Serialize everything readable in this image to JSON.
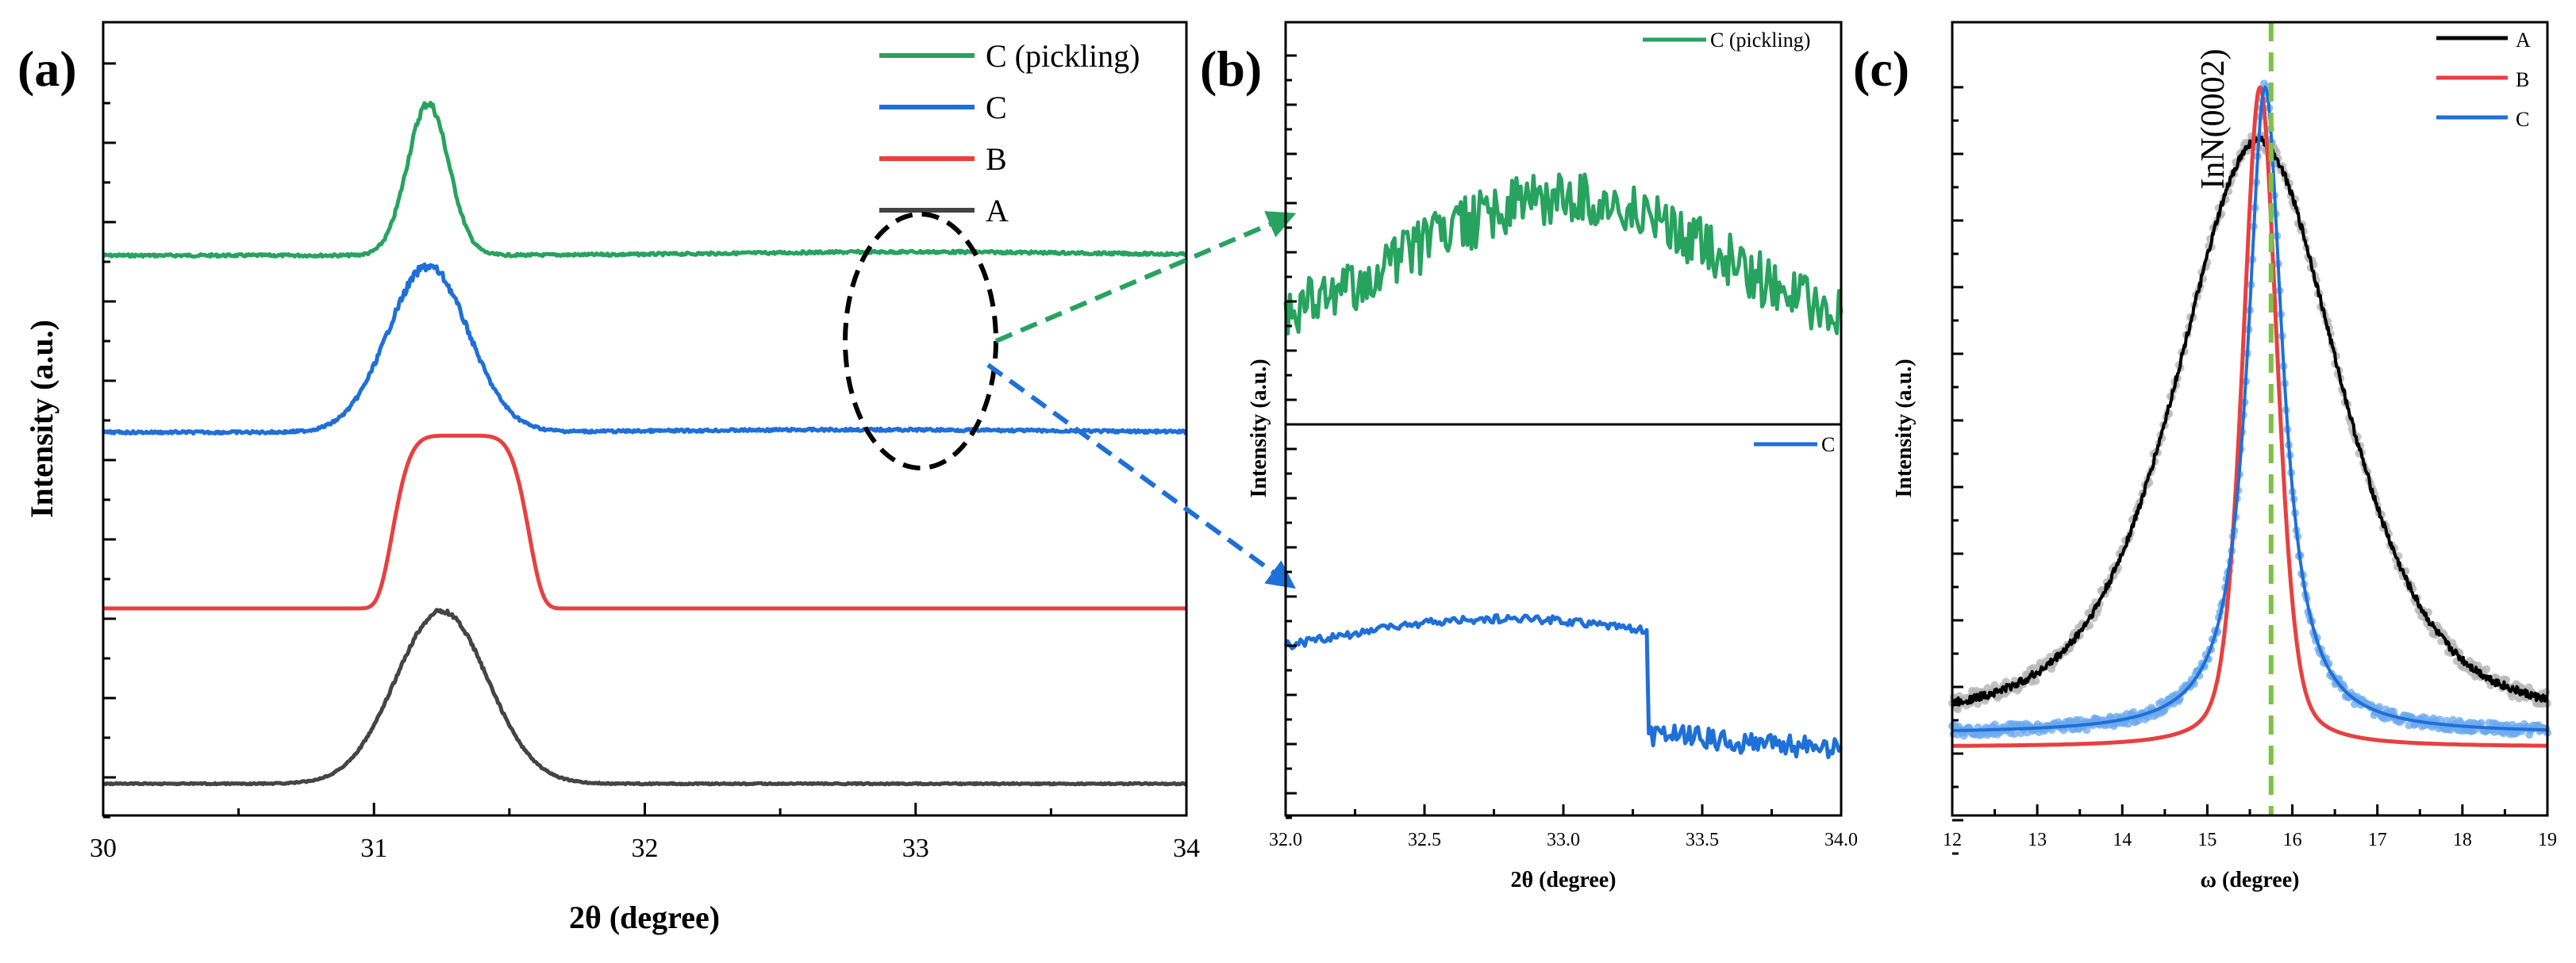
{
  "colors": {
    "A": "#444444",
    "B": "#e84040",
    "C": "#1f6fd8",
    "C_pickling": "#27a35f",
    "A_fit": "#000000",
    "A_scatter": "#b5b5b5",
    "C_scatter": "#6aa8ec",
    "guide_line": "#7dc242",
    "ellipse": "#000000"
  },
  "chart_data": [
    {
      "panel": "(a)",
      "type": "line",
      "xlabel": "2θ (degree)",
      "ylabel": "Intensity (a.u.)",
      "xlim": [
        30,
        34
      ],
      "xticks": [
        "30",
        "31",
        "32",
        "33",
        "34"
      ],
      "y_tick_labels_shown": false,
      "legend": [
        "C (pickling)",
        "C",
        "B",
        "A"
      ],
      "legend_position": "top-right",
      "annotation": "dashed ellipse around 2θ ≈ 33 on the C (pickling) and C traces, with dashed arrows pointing to panel (b)",
      "series": [
        {
          "name": "C (pickling)",
          "stack_order": 4,
          "peak_center": 31.2,
          "peak_fwhm": 0.18,
          "baseline": 0.0,
          "peak_height": 0.87,
          "broad_hump_center": 33.0,
          "broad_hump_height": 0.02,
          "noise": "moderate"
        },
        {
          "name": "C",
          "stack_order": 3,
          "peak_center": 31.2,
          "peak_fwhm": 0.35,
          "baseline": 0.0,
          "peak_height": 0.95,
          "broad_hump_center": 32.8,
          "broad_hump_height": 0.015,
          "noise": "moderate"
        },
        {
          "name": "B",
          "stack_order": 2,
          "peak_center": 31.32,
          "peak_fwhm": 0.42,
          "baseline": 0.0,
          "peak_height": 0.99,
          "noise": "none"
        },
        {
          "name": "A",
          "stack_order": 1,
          "peak_center": 31.25,
          "peak_fwhm": 0.4,
          "baseline": 0.0,
          "peak_height": 0.99,
          "noise": "low"
        }
      ]
    },
    {
      "panel": "(b)",
      "type": "line",
      "xlabel": "2θ (degree)",
      "ylabel": "Intensity (a.u.)",
      "xlim": [
        32.0,
        34.0
      ],
      "xticks": [
        "32.0",
        "32.5",
        "33.0",
        "33.5",
        "34.0"
      ],
      "y_tick_labels_shown": false,
      "subplots": [
        {
          "legend": "C (pickling)",
          "legend_position": "top-right",
          "series": "C (pickling)",
          "shape": "broad hump peaking near 33.0, high noise",
          "hump_center": 33.0
        },
        {
          "legend": "C",
          "legend_position": "top-right",
          "series": "C",
          "shape": "broad hump peaking near 32.8, step down after 33.3",
          "hump_center": 32.8
        }
      ]
    },
    {
      "panel": "(c)",
      "type": "line",
      "xlabel": "ω (degree)",
      "ylabel": "Intensity (a.u.)",
      "xlim": [
        12,
        19
      ],
      "xticks": [
        "12",
        "13",
        "14",
        "15",
        "16",
        "17",
        "18",
        "19"
      ],
      "y_tick_labels_shown": false,
      "legend": [
        "A",
        "B",
        "C"
      ],
      "legend_position": "top-right",
      "guide_line": {
        "x": 15.75,
        "label": "InN(0002)"
      },
      "series": [
        {
          "name": "A",
          "center": 15.6,
          "fwhm": 2.3,
          "peak": 0.92,
          "baseline": 0.03,
          "scatter": true
        },
        {
          "name": "B",
          "center": 15.62,
          "fwhm": 0.45,
          "peak": 1.0,
          "baseline": 0.01,
          "scatter": false
        },
        {
          "name": "C",
          "center": 15.68,
          "fwhm": 0.5,
          "peak": 1.0,
          "baseline": 0.03,
          "scatter": true,
          "wing_shape": "lorentzian"
        }
      ]
    }
  ]
}
